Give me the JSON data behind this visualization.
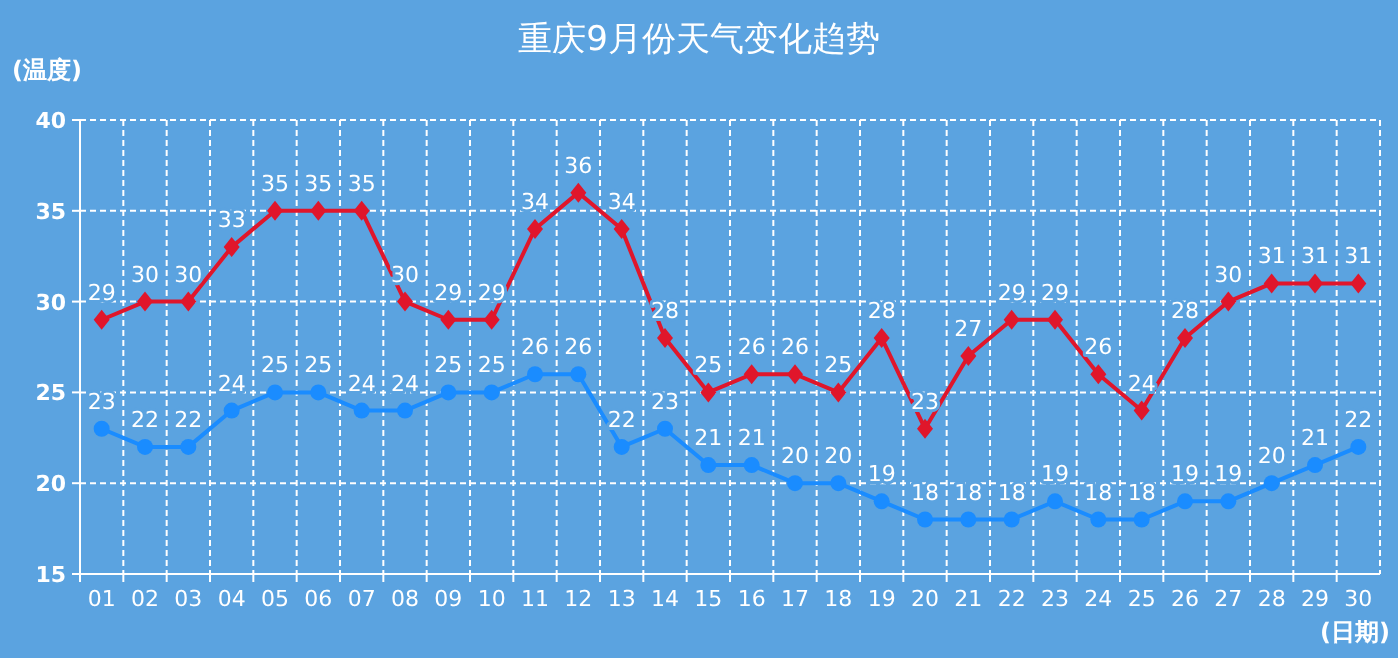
{
  "chart_data": {
    "type": "line",
    "title": "重庆9月份天气变化趋势",
    "xlabel": "(日期)",
    "ylabel": "(温度)",
    "categories": [
      "01",
      "02",
      "03",
      "04",
      "05",
      "06",
      "07",
      "08",
      "09",
      "10",
      "11",
      "12",
      "13",
      "14",
      "15",
      "16",
      "17",
      "18",
      "19",
      "20",
      "21",
      "22",
      "23",
      "24",
      "25",
      "26",
      "27",
      "28",
      "29",
      "30"
    ],
    "series": [
      {
        "color": "#e0162b",
        "marker": "diamond",
        "values": [
          29,
          30,
          30,
          33,
          35,
          35,
          35,
          30,
          29,
          29,
          34,
          36,
          34,
          28,
          25,
          26,
          26,
          25,
          28,
          23,
          27,
          29,
          29,
          26,
          24,
          28,
          30,
          31,
          31,
          31
        ]
      },
      {
        "color": "#1a8cff",
        "marker": "circle",
        "values": [
          23,
          22,
          22,
          24,
          25,
          25,
          24,
          24,
          25,
          25,
          26,
          26,
          22,
          23,
          21,
          21,
          20,
          20,
          19,
          18,
          18,
          18,
          19,
          18,
          18,
          19,
          19,
          20,
          21,
          22
        ]
      }
    ],
    "ylim": [
      15,
      40
    ],
    "yticks": [
      15,
      20,
      25,
      30,
      35,
      40
    ],
    "grid": true,
    "data_labels": true,
    "line_style": "solid"
  }
}
